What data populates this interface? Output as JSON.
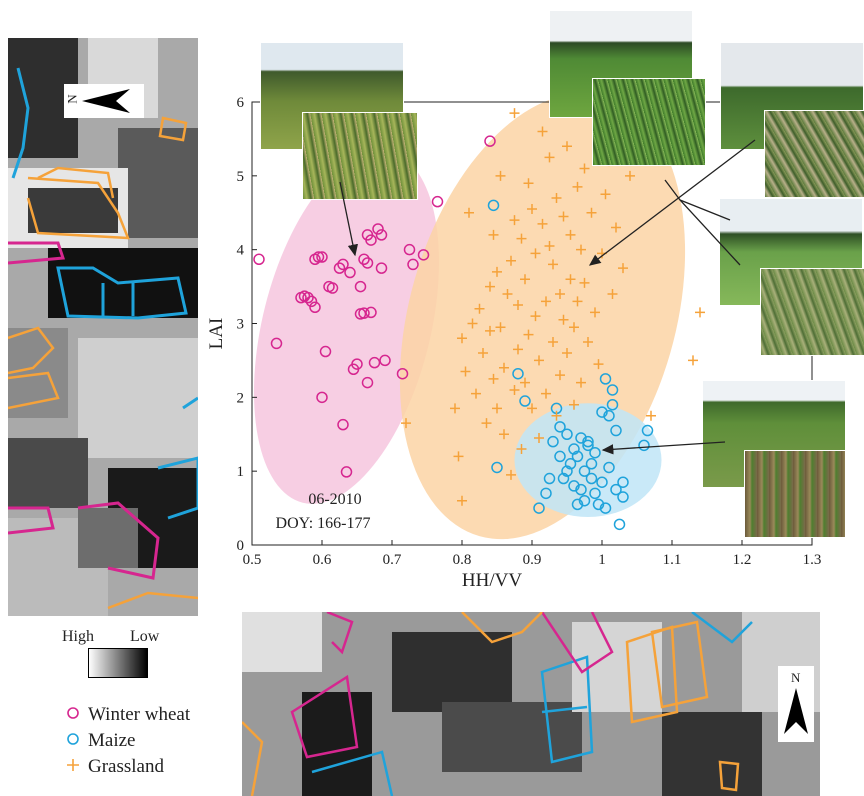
{
  "figure": {
    "legend": {
      "items": [
        {
          "label": "Winter wheat",
          "symbol": "circle",
          "color": "#d6268f"
        },
        {
          "label": "Maize",
          "symbol": "circle",
          "color": "#1fa3db"
        },
        {
          "label": "Grassland",
          "symbol": "plus",
          "color": "#f5a23a"
        }
      ]
    },
    "scale_bar": {
      "high": "High",
      "low": "Low"
    },
    "north_label": "N",
    "annotation": {
      "line1": "06-2010",
      "line2": "DOY: 166-177"
    },
    "icons": [
      "north-arrow-icon"
    ]
  },
  "colors": {
    "winter_wheat": "#d6268f",
    "maize": "#1fa3db",
    "grassland": "#f5a23a",
    "wheat_ellipse": "#f6c5de",
    "grass_ellipse": "#fbd4a4",
    "maize_ellipse": "#bfe5f7"
  },
  "chart_data": {
    "type": "scatter",
    "xlabel": "HH/VV",
    "ylabel": "LAI",
    "xlim": [
      0.5,
      1.3
    ],
    "ylim": [
      0,
      6
    ],
    "xticks": [
      "0.5",
      "0.6",
      "0.7",
      "0.8",
      "0.9",
      "1",
      "1.1",
      "1.2",
      "1.3"
    ],
    "yticks": [
      "0",
      "1",
      "2",
      "3",
      "4",
      "5",
      "6"
    ],
    "grid": false,
    "series": [
      {
        "name": "Winter wheat",
        "marker": "circle",
        "points": [
          [
            0.51,
            3.87
          ],
          [
            0.535,
            2.73
          ],
          [
            0.57,
            3.35
          ],
          [
            0.575,
            3.37
          ],
          [
            0.58,
            3.35
          ],
          [
            0.585,
            3.3
          ],
          [
            0.59,
            3.22
          ],
          [
            0.59,
            3.87
          ],
          [
            0.595,
            3.9
          ],
          [
            0.6,
            3.9
          ],
          [
            0.6,
            2.0
          ],
          [
            0.605,
            2.62
          ],
          [
            0.61,
            3.5
          ],
          [
            0.615,
            3.48
          ],
          [
            0.625,
            3.75
          ],
          [
            0.63,
            3.8
          ],
          [
            0.63,
            1.63
          ],
          [
            0.635,
            0.99
          ],
          [
            0.64,
            3.69
          ],
          [
            0.645,
            2.38
          ],
          [
            0.65,
            2.45
          ],
          [
            0.655,
            3.5
          ],
          [
            0.655,
            3.13
          ],
          [
            0.66,
            3.14
          ],
          [
            0.66,
            3.87
          ],
          [
            0.665,
            4.2
          ],
          [
            0.665,
            3.82
          ],
          [
            0.67,
            4.13
          ],
          [
            0.67,
            3.15
          ],
          [
            0.665,
            2.2
          ],
          [
            0.675,
            2.47
          ],
          [
            0.68,
            4.28
          ],
          [
            0.685,
            4.2
          ],
          [
            0.685,
            3.75
          ],
          [
            0.69,
            2.5
          ],
          [
            0.715,
            2.32
          ],
          [
            0.725,
            4.0
          ],
          [
            0.73,
            3.8
          ],
          [
            0.745,
            3.93
          ],
          [
            0.765,
            4.65
          ],
          [
            0.84,
            5.47
          ]
        ]
      },
      {
        "name": "Maize",
        "marker": "circle",
        "points": [
          [
            0.845,
            4.6
          ],
          [
            0.85,
            1.05
          ],
          [
            0.88,
            2.32
          ],
          [
            0.89,
            1.95
          ],
          [
            0.91,
            0.5
          ],
          [
            0.92,
            0.7
          ],
          [
            0.925,
            0.9
          ],
          [
            0.93,
            1.4
          ],
          [
            0.935,
            1.85
          ],
          [
            0.94,
            1.6
          ],
          [
            0.94,
            1.2
          ],
          [
            0.945,
            0.9
          ],
          [
            0.95,
            1.0
          ],
          [
            0.95,
            1.5
          ],
          [
            0.955,
            1.1
          ],
          [
            0.96,
            0.8
          ],
          [
            0.96,
            1.3
          ],
          [
            0.965,
            1.2
          ],
          [
            0.965,
            0.55
          ],
          [
            0.97,
            1.45
          ],
          [
            0.97,
            0.75
          ],
          [
            0.975,
            1.0
          ],
          [
            0.975,
            0.6
          ],
          [
            0.98,
            1.4
          ],
          [
            0.98,
            1.35
          ],
          [
            0.985,
            1.1
          ],
          [
            0.985,
            0.9
          ],
          [
            0.99,
            0.7
          ],
          [
            0.99,
            1.25
          ],
          [
            0.995,
            0.55
          ],
          [
            1.0,
            1.8
          ],
          [
            1.0,
            0.85
          ],
          [
            1.005,
            2.25
          ],
          [
            1.005,
            0.5
          ],
          [
            1.01,
            1.75
          ],
          [
            1.01,
            1.05
          ],
          [
            1.015,
            1.9
          ],
          [
            1.015,
            2.1
          ],
          [
            1.02,
            1.55
          ],
          [
            1.02,
            0.75
          ],
          [
            1.025,
            0.28
          ],
          [
            1.03,
            0.65
          ],
          [
            1.03,
            0.85
          ],
          [
            1.06,
            1.35
          ],
          [
            1.065,
            1.55
          ]
        ]
      },
      {
        "name": "Grassland",
        "marker": "plus",
        "points": [
          [
            0.72,
            1.65
          ],
          [
            0.79,
            1.85
          ],
          [
            0.795,
            1.2
          ],
          [
            0.8,
            0.6
          ],
          [
            0.8,
            2.8
          ],
          [
            0.805,
            2.35
          ],
          [
            0.81,
            4.5
          ],
          [
            0.815,
            3.0
          ],
          [
            0.82,
            2.05
          ],
          [
            0.825,
            3.2
          ],
          [
            0.83,
            2.6
          ],
          [
            0.835,
            1.65
          ],
          [
            0.84,
            3.5
          ],
          [
            0.84,
            2.9
          ],
          [
            0.845,
            4.2
          ],
          [
            0.845,
            2.25
          ],
          [
            0.85,
            1.85
          ],
          [
            0.85,
            3.7
          ],
          [
            0.855,
            5.0
          ],
          [
            0.855,
            2.95
          ],
          [
            0.86,
            1.5
          ],
          [
            0.86,
            2.4
          ],
          [
            0.865,
            3.4
          ],
          [
            0.87,
            0.95
          ],
          [
            0.87,
            3.85
          ],
          [
            0.875,
            5.85
          ],
          [
            0.875,
            4.4
          ],
          [
            0.875,
            2.1
          ],
          [
            0.88,
            2.65
          ],
          [
            0.88,
            3.25
          ],
          [
            0.885,
            4.15
          ],
          [
            0.885,
            1.3
          ],
          [
            0.89,
            2.2
          ],
          [
            0.89,
            3.6
          ],
          [
            0.895,
            4.9
          ],
          [
            0.895,
            2.85
          ],
          [
            0.9,
            1.85
          ],
          [
            0.9,
            4.55
          ],
          [
            0.905,
            3.1
          ],
          [
            0.905,
            3.95
          ],
          [
            0.91,
            2.5
          ],
          [
            0.91,
            1.45
          ],
          [
            0.915,
            5.6
          ],
          [
            0.915,
            4.35
          ],
          [
            0.92,
            3.3
          ],
          [
            0.92,
            2.05
          ],
          [
            0.925,
            4.05
          ],
          [
            0.925,
            5.25
          ],
          [
            0.93,
            2.75
          ],
          [
            0.93,
            3.8
          ],
          [
            0.935,
            4.7
          ],
          [
            0.935,
            1.75
          ],
          [
            0.94,
            3.4
          ],
          [
            0.94,
            2.3
          ],
          [
            0.945,
            4.45
          ],
          [
            0.945,
            3.05
          ],
          [
            0.95,
            5.4
          ],
          [
            0.95,
            2.6
          ],
          [
            0.955,
            3.6
          ],
          [
            0.955,
            4.2
          ],
          [
            0.96,
            2.95
          ],
          [
            0.96,
            1.9
          ],
          [
            0.965,
            4.85
          ],
          [
            0.965,
            3.3
          ],
          [
            0.97,
            2.2
          ],
          [
            0.97,
            4.0
          ],
          [
            0.975,
            3.55
          ],
          [
            0.975,
            5.1
          ],
          [
            0.98,
            2.75
          ],
          [
            0.985,
            4.5
          ],
          [
            0.99,
            3.15
          ],
          [
            0.99,
            5.8
          ],
          [
            0.995,
            2.45
          ],
          [
            1.0,
            3.95
          ],
          [
            1.005,
            4.75
          ],
          [
            1.01,
            5.2
          ],
          [
            1.015,
            3.4
          ],
          [
            1.02,
            4.3
          ],
          [
            1.03,
            3.75
          ],
          [
            1.04,
            5.0
          ],
          [
            1.07,
            1.75
          ],
          [
            1.13,
            2.5
          ],
          [
            1.14,
            3.15
          ]
        ]
      }
    ],
    "ellipses": [
      {
        "series": "Winter wheat",
        "cx": 0.635,
        "cy": 2.95,
        "rx": 0.12,
        "ry": 2.45,
        "angle_deg": 14
      },
      {
        "series": "Grassland",
        "cx": 0.915,
        "cy": 3.1,
        "rx": 0.19,
        "ry": 3.1,
        "angle_deg": 16
      },
      {
        "series": "Maize",
        "cx": 0.98,
        "cy": 1.15,
        "rx": 0.105,
        "ry": 0.77,
        "angle_deg": 0
      }
    ]
  }
}
